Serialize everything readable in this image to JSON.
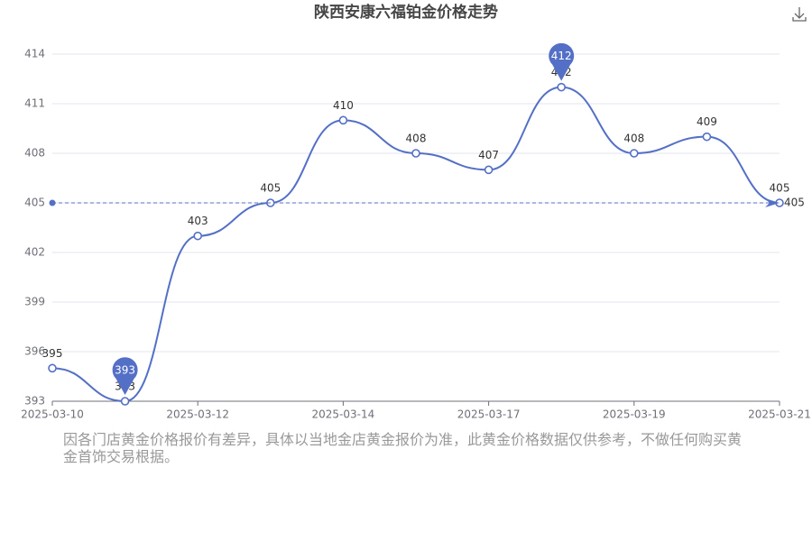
{
  "chart_data": {
    "type": "line",
    "title": "陕西安康六福铂金价格走势",
    "categories": [
      "2025-03-10",
      null,
      "2025-03-12",
      null,
      "2025-03-14",
      null,
      "2025-03-17",
      null,
      "2025-03-19",
      null,
      "2025-03-21"
    ],
    "values": [
      395,
      393,
      403,
      405,
      410,
      408,
      407,
      412,
      408,
      409,
      405
    ],
    "color": "#5470c6",
    "ylim": [
      393,
      414
    ],
    "yticks": [
      393,
      396,
      399,
      402,
      405,
      408,
      411,
      414
    ],
    "grid": true,
    "mark_point_values": [
      412,
      393
    ],
    "average": 405,
    "note": "因各门店黄金价格报价有差异，具体以当地金店黄金报价为准，此黄金价格数据仅供参考，不做任何购买黄金首饰交易根据。"
  }
}
